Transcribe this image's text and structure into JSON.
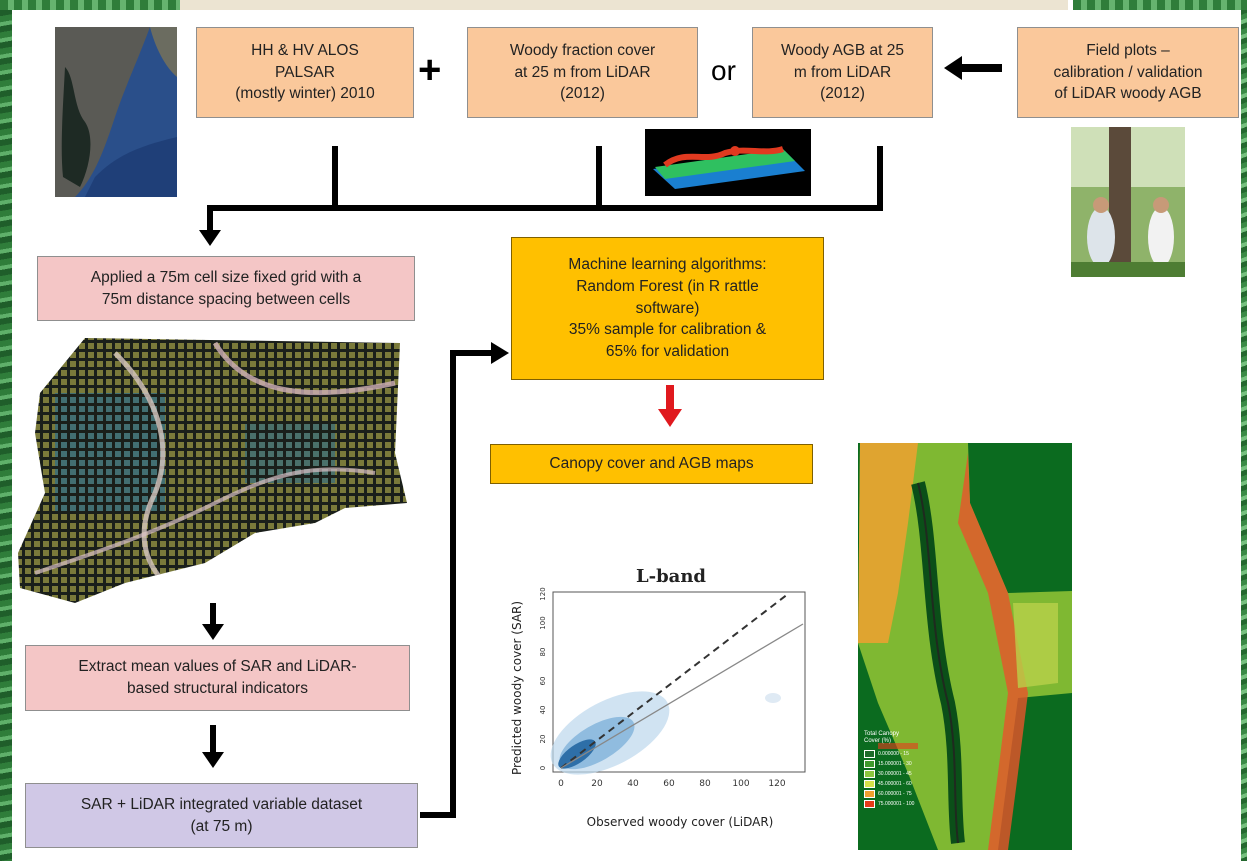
{
  "boxes": {
    "palsar": "HH & HV ALOS\nPALSAR\n(mostly winter) 2010",
    "woody_fraction": "Woody fraction cover\nat 25 m from LiDAR\n(2012)",
    "woody_agb": "Woody AGB at 25\nm from LiDAR\n(2012)",
    "field_plots": "Field plots –\ncalibration / validation\nof LiDAR woody AGB",
    "grid": "Applied a 75m cell size fixed grid with a\n75m distance spacing between cells",
    "ml": "Machine learning algorithms:\nRandom Forest (in R rattle\nsoftware)\n35% sample for calibration &\n65% for validation",
    "canopy_maps": "Canopy cover and AGB maps",
    "extract": "Extract mean values of SAR and LiDAR-\nbased structural indicators",
    "dataset": "SAR + LiDAR integrated variable dataset\n(at 75 m)"
  },
  "symbols": {
    "plus": "+",
    "or": "or"
  },
  "scatter": {
    "title": "L-band",
    "xlabel": "Observed woody cover (LiDAR)",
    "ylabel": "Predicted woody cover (SAR)",
    "xticks": [
      "0",
      "20",
      "40",
      "60",
      "80",
      "100",
      "120"
    ],
    "yticks": [
      "0",
      "20",
      "40",
      "60",
      "80",
      "100",
      "120"
    ]
  },
  "map_legend": {
    "title": "Total Canopy Cover (%)",
    "entries": [
      "0.000000 - 15",
      "15.000001 - 30",
      "30.000001 - 45",
      "45.000001 - 60",
      "60.000001 - 75",
      "75.000001 - 100"
    ],
    "colors": [
      "#1d6b2a",
      "#3f9a2e",
      "#8cc63f",
      "#d6e04a",
      "#f0a030",
      "#e63a1a"
    ]
  },
  "colors": {
    "orange_box": "#fac89b",
    "pink_box": "#f4c6c6",
    "gold_box": "#ffc000",
    "lavender_box": "#d0c8e6",
    "red_arrow": "#e0191e"
  }
}
